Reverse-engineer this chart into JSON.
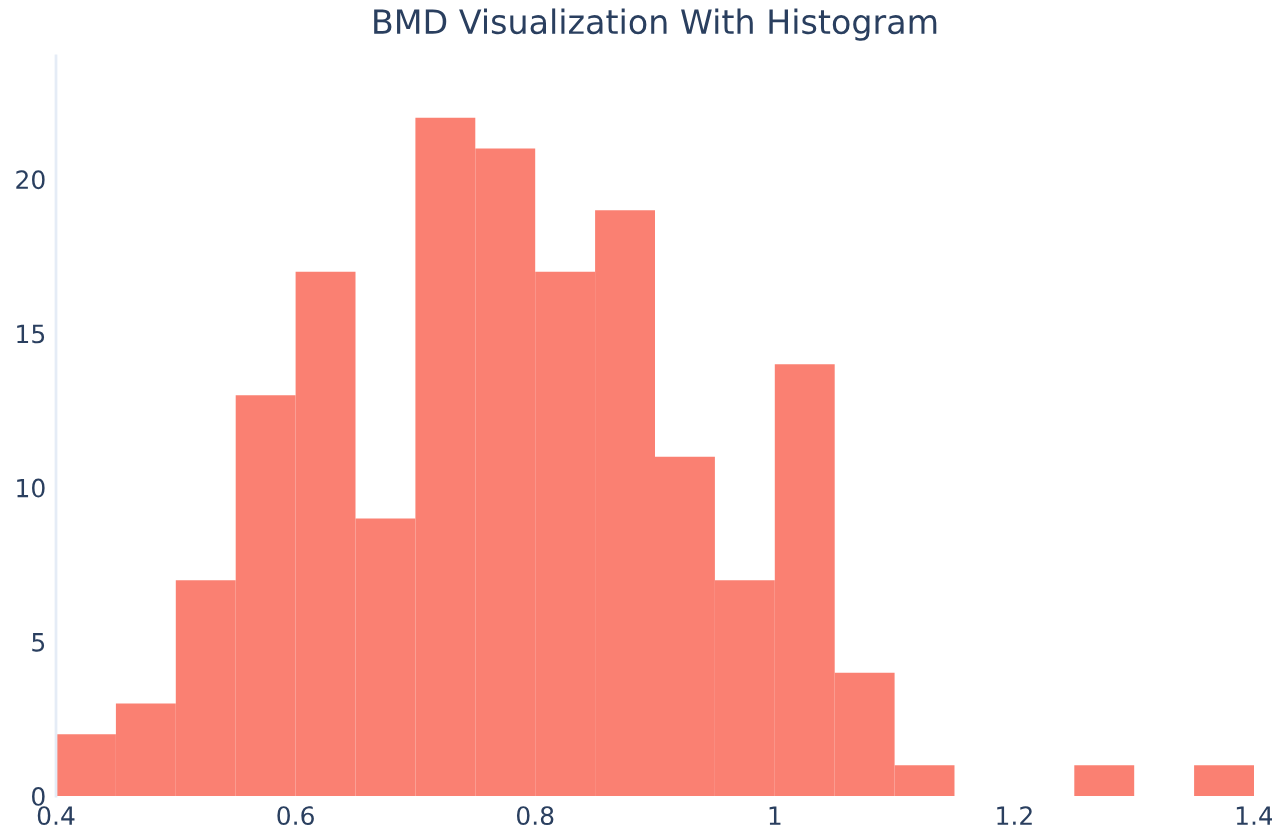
{
  "chart_data": {
    "type": "histogram",
    "title": "BMD Visualization With Histogram",
    "bins": [
      0.4,
      0.45,
      0.5,
      0.55,
      0.6,
      0.65,
      0.7,
      0.75,
      0.8,
      0.85,
      0.9,
      0.95,
      1.0,
      1.05,
      1.1,
      1.15,
      1.2,
      1.25,
      1.3,
      1.35,
      1.4
    ],
    "values": [
      2,
      3,
      7,
      13,
      17,
      9,
      22,
      21,
      17,
      19,
      11,
      7,
      14,
      4,
      1,
      0,
      0,
      1,
      0,
      1
    ],
    "color": "#fa8072",
    "xlim": [
      0.4,
      1.4
    ],
    "xticks": [
      0.4,
      0.6,
      0.8,
      1,
      1.2,
      1.4
    ],
    "ylim": [
      0,
      24
    ],
    "yticks": [
      0,
      5,
      10,
      15,
      20
    ],
    "grid": false
  }
}
